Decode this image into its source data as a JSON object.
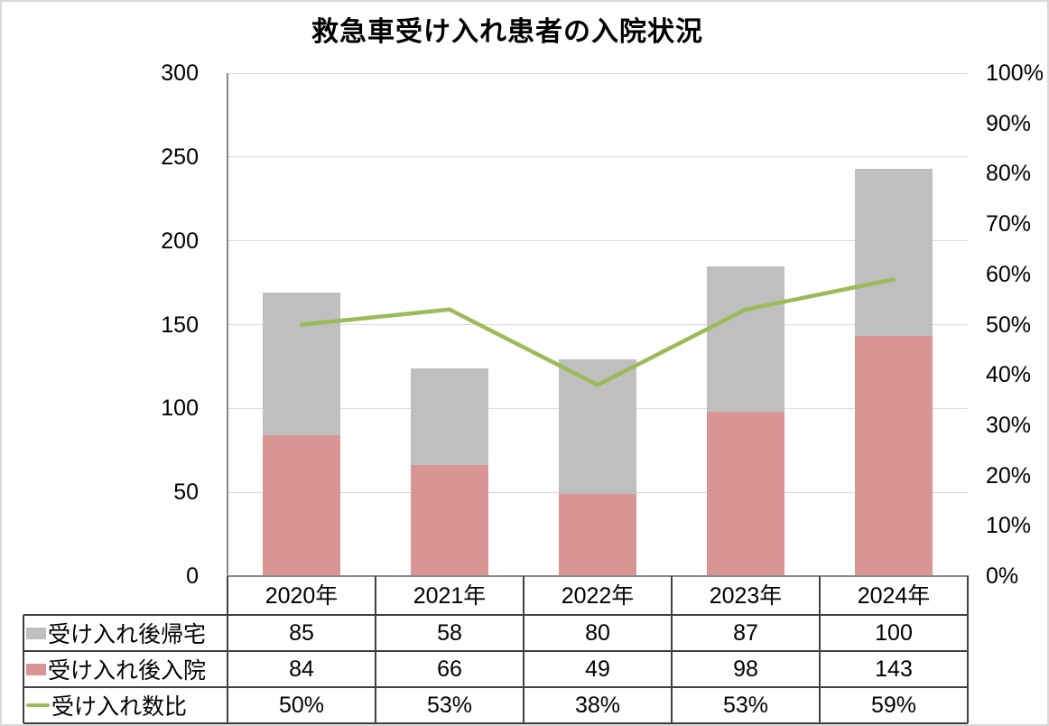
{
  "title": "救急車受け入れ患者の入院状況",
  "chart_data": {
    "type": "combo_stacked_bar_line",
    "categories": [
      "2020年",
      "2021年",
      "2022年",
      "2023年",
      "2024年"
    ],
    "series": [
      {
        "name": "受け入れ後帰宅",
        "type": "bar",
        "role": "stack-top",
        "color": "#BFBFBF",
        "values": [
          85,
          58,
          80,
          87,
          100
        ]
      },
      {
        "name": "受け入れ後入院",
        "type": "bar",
        "role": "stack-bottom",
        "color": "#D99594",
        "values": [
          84,
          66,
          49,
          98,
          143
        ]
      },
      {
        "name": "受け入れ数比",
        "type": "line",
        "axis": "right",
        "color": "#9BBB59",
        "values_percent": [
          50,
          53,
          38,
          53,
          59
        ],
        "value_labels": [
          "50%",
          "53%",
          "38%",
          "53%",
          "59%"
        ]
      }
    ],
    "left_axis": {
      "min": 0,
      "max": 300,
      "step": 50,
      "tick_labels": [
        "300",
        "250",
        "200",
        "150",
        "100",
        "50",
        "0"
      ]
    },
    "right_axis": {
      "min": 0,
      "max": 100,
      "step": 10,
      "tick_labels": [
        "100%",
        "90%",
        "80%",
        "70%",
        "60%",
        "50%",
        "40%",
        "30%",
        "20%",
        "10%",
        "0%"
      ]
    },
    "grid": true,
    "legend_position": "data_table",
    "colors": {
      "gridline": "#D9D9D9",
      "axis_line": "#898989",
      "table_border": "#404040",
      "text": "#000000",
      "background": "#FFFFFF",
      "chart_border": "#D9D9D9"
    }
  }
}
